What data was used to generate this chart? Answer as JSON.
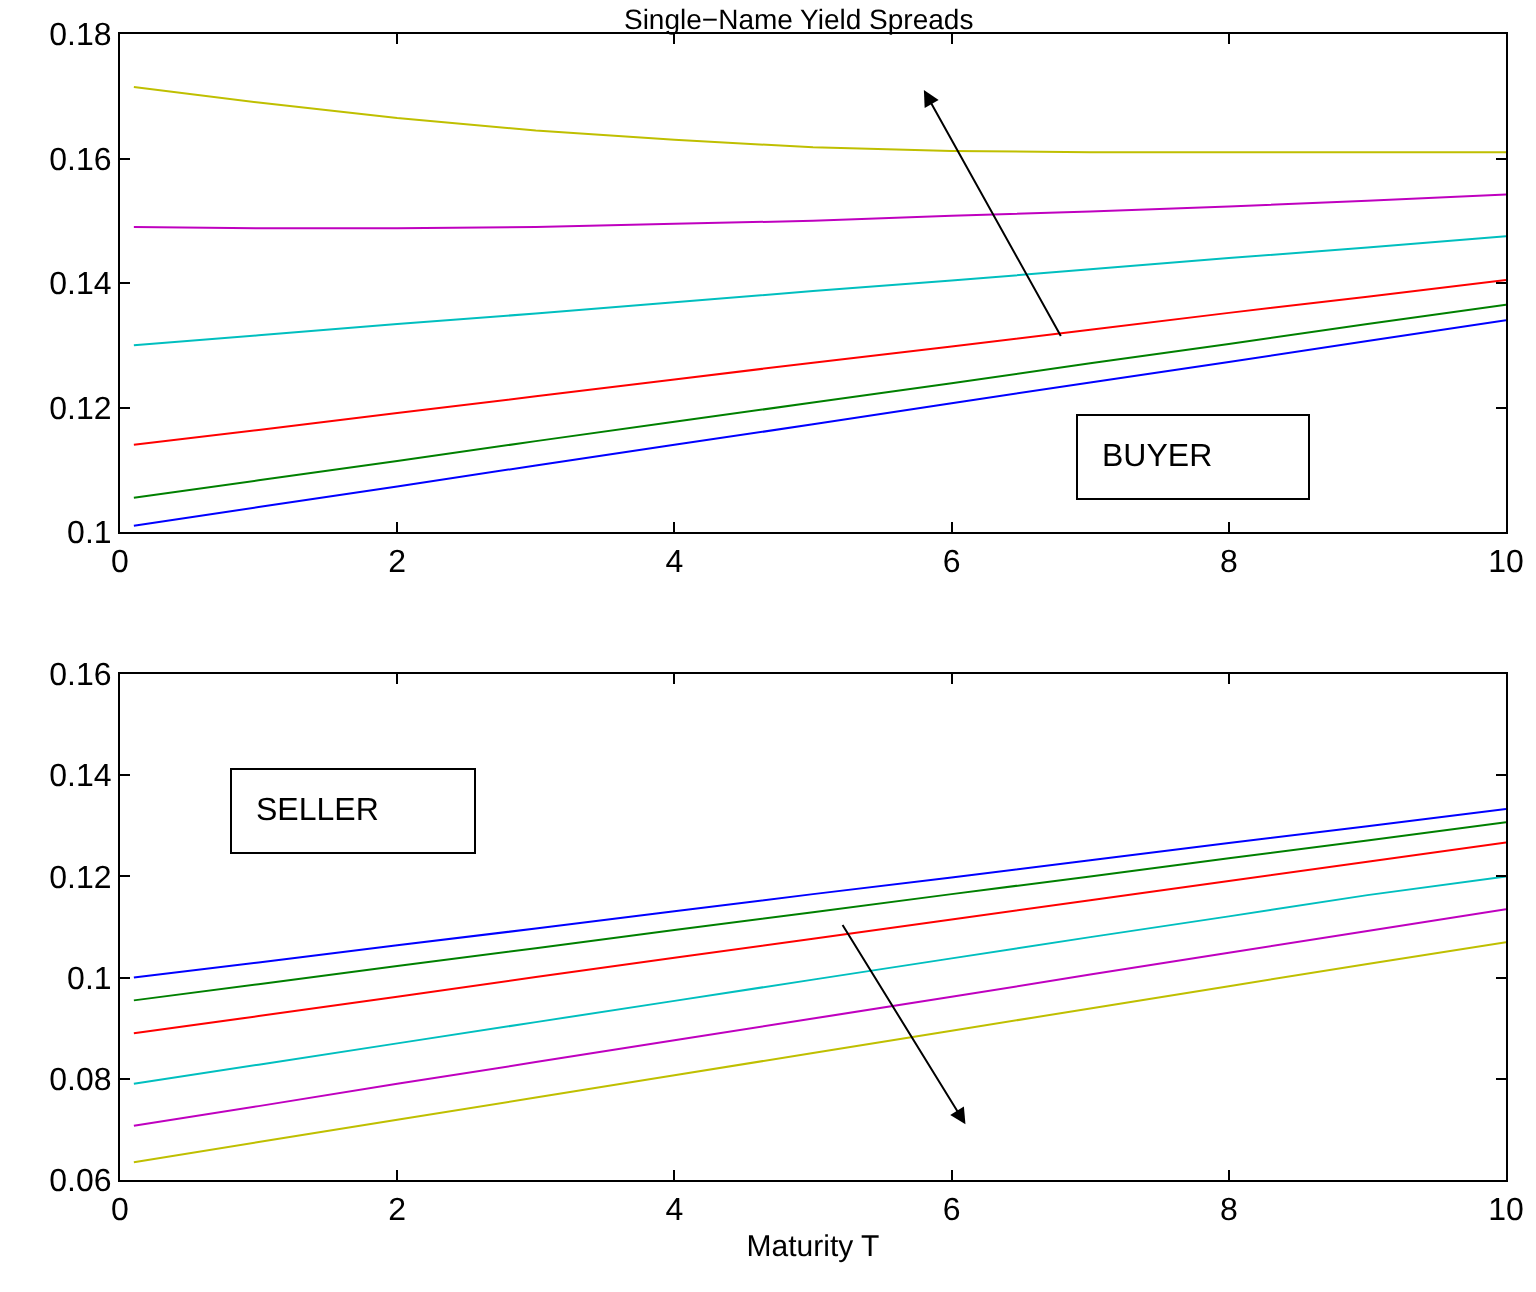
{
  "chart_data": [
    {
      "type": "line",
      "title": "Single−Name Yield Spreads",
      "x": [
        0.1,
        1,
        2,
        3,
        4,
        5,
        6,
        7,
        8,
        9,
        10
      ],
      "series": [
        {
          "color": "#bfbf00",
          "values": [
            0.1715,
            0.169,
            0.1665,
            0.1645,
            0.163,
            0.1618,
            0.1612,
            0.161,
            0.161,
            0.161,
            0.161
          ]
        },
        {
          "color": "#bf00bf",
          "values": [
            0.149,
            0.1488,
            0.1488,
            0.149,
            0.1495,
            0.15,
            0.1508,
            0.1515,
            0.1523,
            0.1532,
            0.1542
          ]
        },
        {
          "color": "#00bfbf",
          "values": [
            0.13,
            0.1316,
            0.1334,
            0.1351,
            0.1369,
            0.1387,
            0.1404,
            0.1422,
            0.144,
            0.1457,
            0.1475
          ]
        },
        {
          "color": "#ff0000",
          "values": [
            0.114,
            0.1164,
            0.1191,
            0.1218,
            0.1245,
            0.1272,
            0.1298,
            0.1325,
            0.1352,
            0.1378,
            0.1405
          ]
        },
        {
          "color": "#008000",
          "values": [
            0.1055,
            0.1083,
            0.1114,
            0.1146,
            0.1177,
            0.1208,
            0.1239,
            0.1271,
            0.1302,
            0.1334,
            0.1365
          ]
        },
        {
          "color": "#0000ff",
          "values": [
            0.101,
            0.104,
            0.1073,
            0.1107,
            0.114,
            0.1173,
            0.1207,
            0.124,
            0.1273,
            0.1307,
            0.134
          ]
        }
      ],
      "annotations": [
        "BUYER"
      ],
      "xlim": [
        0,
        10
      ],
      "xticks": [
        0,
        2,
        4,
        6,
        8,
        10
      ],
      "ylim": [
        0.1,
        0.18
      ],
      "yticks": [
        0.1,
        0.12,
        0.14,
        0.16,
        0.18
      ],
      "grid": false
    },
    {
      "type": "line",
      "xlabel": "Maturity T",
      "x": [
        0.1,
        1,
        2,
        3,
        4,
        5,
        6,
        7,
        8,
        9,
        10
      ],
      "series": [
        {
          "color": "#0000ff",
          "values": [
            0.1,
            0.103,
            0.1064,
            0.1097,
            0.1131,
            0.1165,
            0.1198,
            0.1232,
            0.1266,
            0.1299,
            0.1333
          ]
        },
        {
          "color": "#008000",
          "values": [
            0.0955,
            0.0987,
            0.1023,
            0.1058,
            0.1094,
            0.1129,
            0.1165,
            0.12,
            0.1236,
            0.1271,
            0.1307
          ]
        },
        {
          "color": "#ff0000",
          "values": [
            0.089,
            0.0924,
            0.0962,
            0.1001,
            0.1039,
            0.1077,
            0.1115,
            0.1153,
            0.1191,
            0.1229,
            0.1267
          ]
        },
        {
          "color": "#00bfbf",
          "values": [
            0.079,
            0.0828,
            0.087,
            0.0912,
            0.0954,
            0.0996,
            0.1038,
            0.108,
            0.1121,
            0.1163,
            0.12
          ]
        },
        {
          "color": "#bf00bf",
          "values": [
            0.0707,
            0.0746,
            0.079,
            0.0833,
            0.0876,
            0.0919,
            0.0962,
            0.1006,
            0.1049,
            0.1092,
            0.1135
          ]
        },
        {
          "color": "#bfbf00",
          "values": [
            0.0635,
            0.0675,
            0.0719,
            0.0763,
            0.0807,
            0.0851,
            0.0895,
            0.0939,
            0.0983,
            0.1027,
            0.107
          ]
        }
      ],
      "annotations": [
        "SELLER"
      ],
      "xlim": [
        0,
        10
      ],
      "xticks": [
        0,
        2,
        4,
        6,
        8,
        10
      ],
      "ylim": [
        0.06,
        0.16
      ],
      "yticks": [
        0.06,
        0.08,
        0.1,
        0.12,
        0.14,
        0.16
      ],
      "grid": false
    }
  ]
}
